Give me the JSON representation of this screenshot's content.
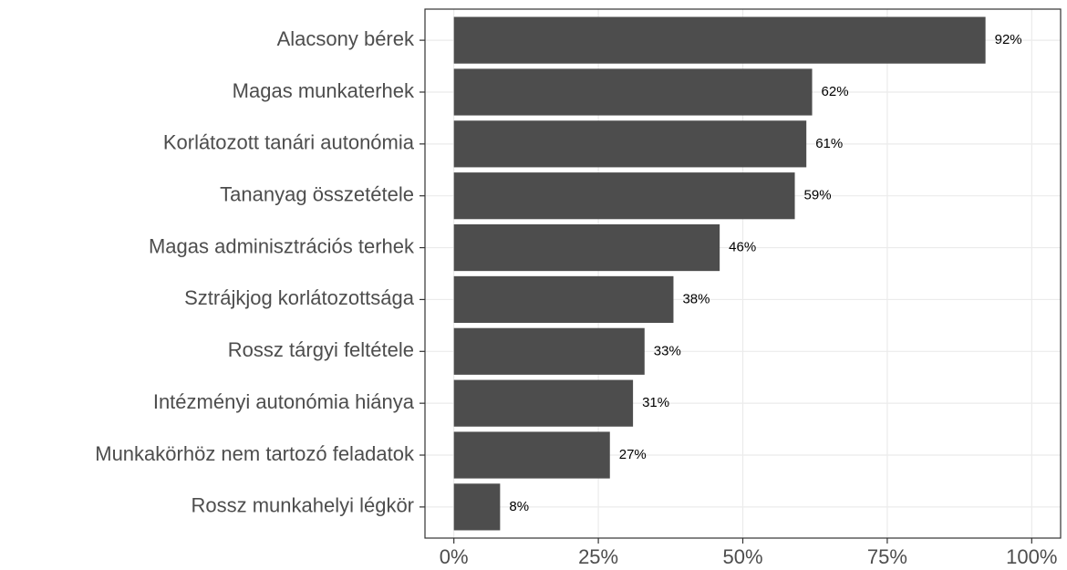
{
  "chart_data": {
    "type": "bar",
    "orientation": "horizontal",
    "categories": [
      "Alacsony bérek",
      "Magas munkaterhek",
      "Korlátozott tanári autonómia",
      "Tananyag összetétele",
      "Magas adminisztrációs terhek",
      "Sztrájkjog korlátozottsága",
      "Rossz tárgyi feltétele",
      "Intézményi autonómia hiánya",
      "Munkakörhöz nem tartozó feladatok",
      "Rossz munkahelyi légkör"
    ],
    "values": [
      92,
      62,
      61,
      59,
      46,
      38,
      33,
      31,
      27,
      8
    ],
    "value_labels": [
      "92%",
      "62%",
      "61%",
      "59%",
      "46%",
      "38%",
      "33%",
      "31%",
      "27%",
      "8%"
    ],
    "color": "#4d4d4d",
    "xlim": [
      -5,
      105
    ],
    "xticks": [
      {
        "value": 0,
        "label": "0%"
      },
      {
        "value": 25,
        "label": "25%"
      },
      {
        "value": 50,
        "label": "50%"
      },
      {
        "value": 75,
        "label": "75%"
      },
      {
        "value": 100,
        "label": "100%"
      }
    ],
    "grid": true
  }
}
